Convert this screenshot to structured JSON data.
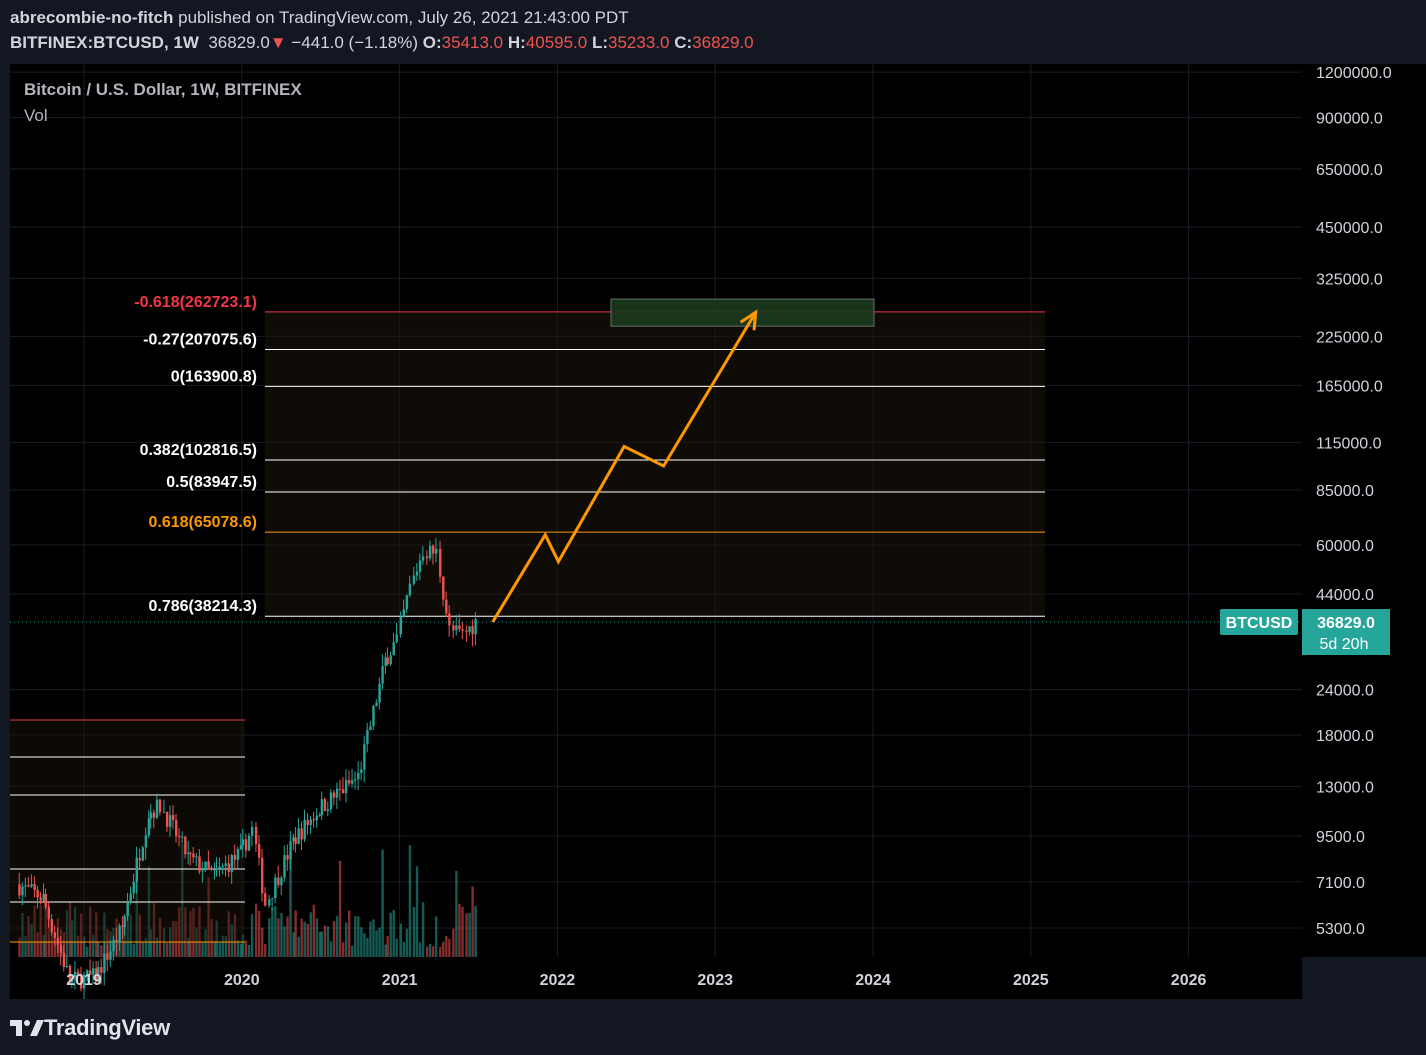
{
  "header": {
    "author": "abrecombie-no-fitch",
    "published": "published on TradingView.com, July 26, 2021 21:43:00 PDT",
    "symbol": "BITFINEX:BTCUSD, 1W",
    "last": "36829.0",
    "down_arrow": "▼",
    "change": "−441.0 (−1.18%)",
    "o_label": "O:",
    "o_value": "35413.0",
    "h_label": "H:",
    "h_value": "40595.0",
    "l_label": "L:",
    "l_value": "35233.0",
    "c_label": "C:",
    "c_value": "36829.0"
  },
  "legend": {
    "title": "Bitcoin / U.S. Dollar, 1W, BITFINEX",
    "volume": "Vol"
  },
  "price_tag": {
    "symbol": "BTCUSD",
    "price": "36829.0",
    "countdown": "5d 20h"
  },
  "footer": {
    "logo": "TradingView"
  },
  "chart_data": {
    "type": "candlestick",
    "scale": "log",
    "y_ticks": [
      1200000,
      900000,
      650000,
      450000,
      325000,
      225000,
      165000,
      115000,
      85000,
      60000,
      44000,
      24000,
      18000,
      13000,
      9500,
      7100,
      5300
    ],
    "y_tick_labels": [
      "1200000.0",
      "900000.0",
      "650000.0",
      "450000.0",
      "325000.0",
      "225000.0",
      "165000.0",
      "115000.0",
      "85000.0",
      "60000.0",
      "44000.0",
      "24000.0",
      "18000.0",
      "13000.0",
      "9500.0",
      "7100.0",
      "5300.0"
    ],
    "x_ticks": [
      "2019",
      "2020",
      "2021",
      "2022",
      "2023",
      "2024",
      "2025",
      "2026"
    ],
    "last_price": 36829,
    "fib_levels": [
      {
        "label": "-0.618(262723.1)",
        "value": 262723.1,
        "color": "#f23645"
      },
      {
        "label": "-0.27(207075.6)",
        "value": 207075.6,
        "color": "#ffffff"
      },
      {
        "label": "0(163900.8)",
        "value": 163900.8,
        "color": "#ffffff"
      },
      {
        "label": "0.382(102816.5)",
        "value": 102816.5,
        "color": "#ffffff"
      },
      {
        "label": "0.5(83947.5)",
        "value": 83947.5,
        "color": "#ffffff"
      },
      {
        "label": "0.618(65078.6)",
        "value": 65078.6,
        "color": "#ff9800"
      },
      {
        "label": "0.786(38214.3)",
        "value": 38214.3,
        "color": "#ffffff"
      }
    ],
    "projection_path": [
      {
        "date": "2021-08",
        "price": 36829
      },
      {
        "date": "2021-12",
        "price": 64000
      },
      {
        "date": "2022-01",
        "price": 54000
      },
      {
        "date": "2022-06",
        "price": 112000
      },
      {
        "date": "2022-09",
        "price": 99000
      },
      {
        "date": "2023-04",
        "price": 262000
      }
    ],
    "target_box": {
      "x_start": "2022-05",
      "x_end": "2024-01",
      "y_low": 240000,
      "y_high": 285000
    },
    "weekly_closes_sample": [
      {
        "date": "2018-08",
        "close": 7000
      },
      {
        "date": "2018-10",
        "close": 6400
      },
      {
        "date": "2018-12",
        "close": 3800
      },
      {
        "date": "2019-02",
        "close": 3900
      },
      {
        "date": "2019-04",
        "close": 5300
      },
      {
        "date": "2019-06",
        "close": 11000
      },
      {
        "date": "2019-07",
        "close": 11500
      },
      {
        "date": "2019-09",
        "close": 8300
      },
      {
        "date": "2019-11",
        "close": 7400
      },
      {
        "date": "2020-01",
        "close": 8500
      },
      {
        "date": "2020-02",
        "close": 9900
      },
      {
        "date": "2020-03",
        "close": 6200
      },
      {
        "date": "2020-05",
        "close": 9200
      },
      {
        "date": "2020-07",
        "close": 11300
      },
      {
        "date": "2020-10",
        "close": 13800
      },
      {
        "date": "2020-12",
        "close": 28900
      },
      {
        "date": "2021-01",
        "close": 33000
      },
      {
        "date": "2021-02",
        "close": 46000
      },
      {
        "date": "2021-03",
        "close": 58000
      },
      {
        "date": "2021-04",
        "close": 57000
      },
      {
        "date": "2021-05",
        "close": 35000
      },
      {
        "date": "2021-06",
        "close": 34000
      },
      {
        "date": "2021-07",
        "close": 36829
      }
    ]
  },
  "colors": {
    "up": "#26a69a",
    "down": "#ef5350",
    "projection": "#ff9800",
    "target_box_fill": "#1b3a1e",
    "price_tag_bg": "#26a69a"
  }
}
